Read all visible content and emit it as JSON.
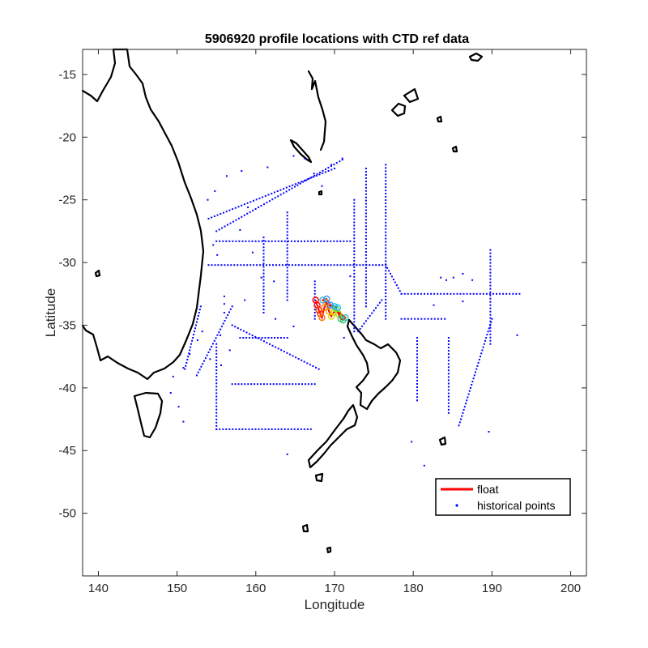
{
  "chart_data": {
    "type": "scatter",
    "title": "5906920 profile locations with CTD ref data",
    "xlabel": "Longitude",
    "ylabel": "Latitude",
    "xlim": [
      138,
      202
    ],
    "ylim": [
      -55,
      -13
    ],
    "xticks": [
      "140",
      "150",
      "160",
      "170",
      "180",
      "190",
      "200"
    ],
    "yticks": [
      "-15",
      "-20",
      "-25",
      "-30",
      "-35",
      "-40",
      "-45",
      "-50"
    ],
    "legend": {
      "placement": "lower-right",
      "entries": [
        {
          "label": "float",
          "color": "#ff0000",
          "marker": "line"
        },
        {
          "label": "historical points",
          "color": "#0000ff",
          "marker": "dot"
        }
      ]
    },
    "colors": {
      "float": "#ff0000",
      "historical": "#0000ff",
      "coastline": "#000000"
    },
    "series": [
      {
        "name": "historical points",
        "segments": [
          [
            [
              154,
              -30.2
            ],
            [
              176.5,
              -30.2
            ]
          ],
          [
            [
              155,
              -28.3
            ],
            [
              172,
              -28.3
            ]
          ],
          [
            [
              176.5,
              -30.2
            ],
            [
              178.5,
              -32.5
            ]
          ],
          [
            [
              178.5,
              -32.5
            ],
            [
              193.5,
              -32.5
            ]
          ],
          [
            [
              176.5,
              -22.2
            ],
            [
              176.5,
              -34.5
            ]
          ],
          [
            [
              174,
              -22.5
            ],
            [
              174,
              -33.5
            ]
          ],
          [
            [
              172.5,
              -25
            ],
            [
              172.5,
              -35.5
            ]
          ],
          [
            [
              173,
              -35.5
            ],
            [
              176,
              -33
            ]
          ],
          [
            [
              155,
              -27.5
            ],
            [
              171,
              -21.8
            ]
          ],
          [
            [
              154,
              -26.5
            ],
            [
              170,
              -22.5
            ]
          ],
          [
            [
              189.8,
              -29
            ],
            [
              189.8,
              -36.5
            ]
          ],
          [
            [
              190,
              -34.5
            ],
            [
              185.8,
              -43
            ]
          ],
          [
            [
              155,
              -43.3
            ],
            [
              167,
              -43.3
            ]
          ],
          [
            [
              155,
              -36.5
            ],
            [
              155,
              -43.3
            ]
          ],
          [
            [
              157,
              -35
            ],
            [
              168,
              -38.5
            ]
          ],
          [
            [
              157,
              -39.7
            ],
            [
              167.5,
              -39.7
            ]
          ],
          [
            [
              178.5,
              -34.5
            ],
            [
              184,
              -34.5
            ]
          ],
          [
            [
              152.5,
              -39
            ],
            [
              157,
              -33.5
            ]
          ],
          [
            [
              151,
              -38.5
            ],
            [
              153,
              -33.5
            ]
          ],
          [
            [
              158,
              -36
            ],
            [
              164,
              -36
            ]
          ],
          [
            [
              164,
              -26
            ],
            [
              164,
              -33
            ]
          ],
          [
            [
              161,
              -28
            ],
            [
              161,
              -34
            ]
          ],
          [
            [
              167.5,
              -31.5
            ],
            [
              167.5,
              -34.5
            ]
          ],
          [
            [
              184.5,
              -36
            ],
            [
              184.5,
              -42
            ]
          ],
          [
            [
              180.5,
              -36
            ],
            [
              180.5,
              -41
            ]
          ]
        ],
        "points": [
          [
            156,
            -32.7
          ],
          [
            156,
            -33.3
          ],
          [
            156,
            -34
          ],
          [
            153.2,
            -35.5
          ],
          [
            152.6,
            -36.2
          ],
          [
            151.6,
            -37.3
          ],
          [
            150.8,
            -38.4
          ],
          [
            149.5,
            -39.1
          ],
          [
            149.2,
            -40.4
          ],
          [
            150.2,
            -41.5
          ],
          [
            150.8,
            -42.7
          ],
          [
            153.9,
            -25
          ],
          [
            154.8,
            -24.3
          ],
          [
            156.3,
            -23.1
          ],
          [
            158.2,
            -22.7
          ],
          [
            161.5,
            -22.4
          ],
          [
            164.8,
            -21.5
          ],
          [
            166.2,
            -21.7
          ],
          [
            167.4,
            -22.9
          ],
          [
            168.4,
            -23.9
          ],
          [
            169.6,
            -22.2
          ],
          [
            171,
            -21.7
          ],
          [
            164,
            -45.3
          ],
          [
            179.8,
            -44.3
          ],
          [
            181.4,
            -46.2
          ],
          [
            182.9,
            -47.3
          ],
          [
            189.6,
            -43.5
          ],
          [
            193.2,
            -35.8
          ],
          [
            162.5,
            -34.5
          ],
          [
            164.8,
            -35.1
          ],
          [
            155.5,
            -35.8
          ],
          [
            154.2,
            -37.7
          ],
          [
            155.6,
            -38.2
          ],
          [
            156.7,
            -37
          ],
          [
            158.6,
            -33
          ],
          [
            160.7,
            -31.2
          ],
          [
            162.3,
            -31.5
          ],
          [
            169.2,
            -33.3
          ],
          [
            171.2,
            -36
          ],
          [
            172,
            -31.1
          ],
          [
            183.5,
            -31.2
          ],
          [
            184.2,
            -31.4
          ],
          [
            185.1,
            -31.2
          ],
          [
            186.3,
            -30.9
          ],
          [
            187.5,
            -31.4
          ],
          [
            182.6,
            -33.4
          ],
          [
            186.3,
            -33.1
          ],
          [
            159.6,
            -29.2
          ],
          [
            158,
            -27.4
          ],
          [
            159,
            -25.6
          ],
          [
            154.6,
            -28.6
          ],
          [
            155.1,
            -29.4
          ]
        ]
      },
      {
        "name": "float",
        "points": [
          [
            167.6,
            -33
          ],
          [
            167.8,
            -33.4
          ],
          [
            168,
            -33.8
          ],
          [
            168.2,
            -34.1
          ],
          [
            168.4,
            -34.4
          ],
          [
            168.7,
            -33.6
          ],
          [
            169,
            -33.2
          ],
          [
            169.3,
            -33.9
          ],
          [
            169.6,
            -34.3
          ],
          [
            169.9,
            -34
          ],
          [
            170.2,
            -33.7
          ],
          [
            170.5,
            -34.1
          ],
          [
            170.8,
            -34.5
          ],
          [
            171.1,
            -34.6
          ],
          [
            171.4,
            -34.4
          ],
          [
            168.5,
            -33
          ],
          [
            169,
            -32.9
          ],
          [
            169.5,
            -33.4
          ],
          [
            170,
            -33.5
          ],
          [
            170.4,
            -33.6
          ]
        ]
      }
    ]
  }
}
